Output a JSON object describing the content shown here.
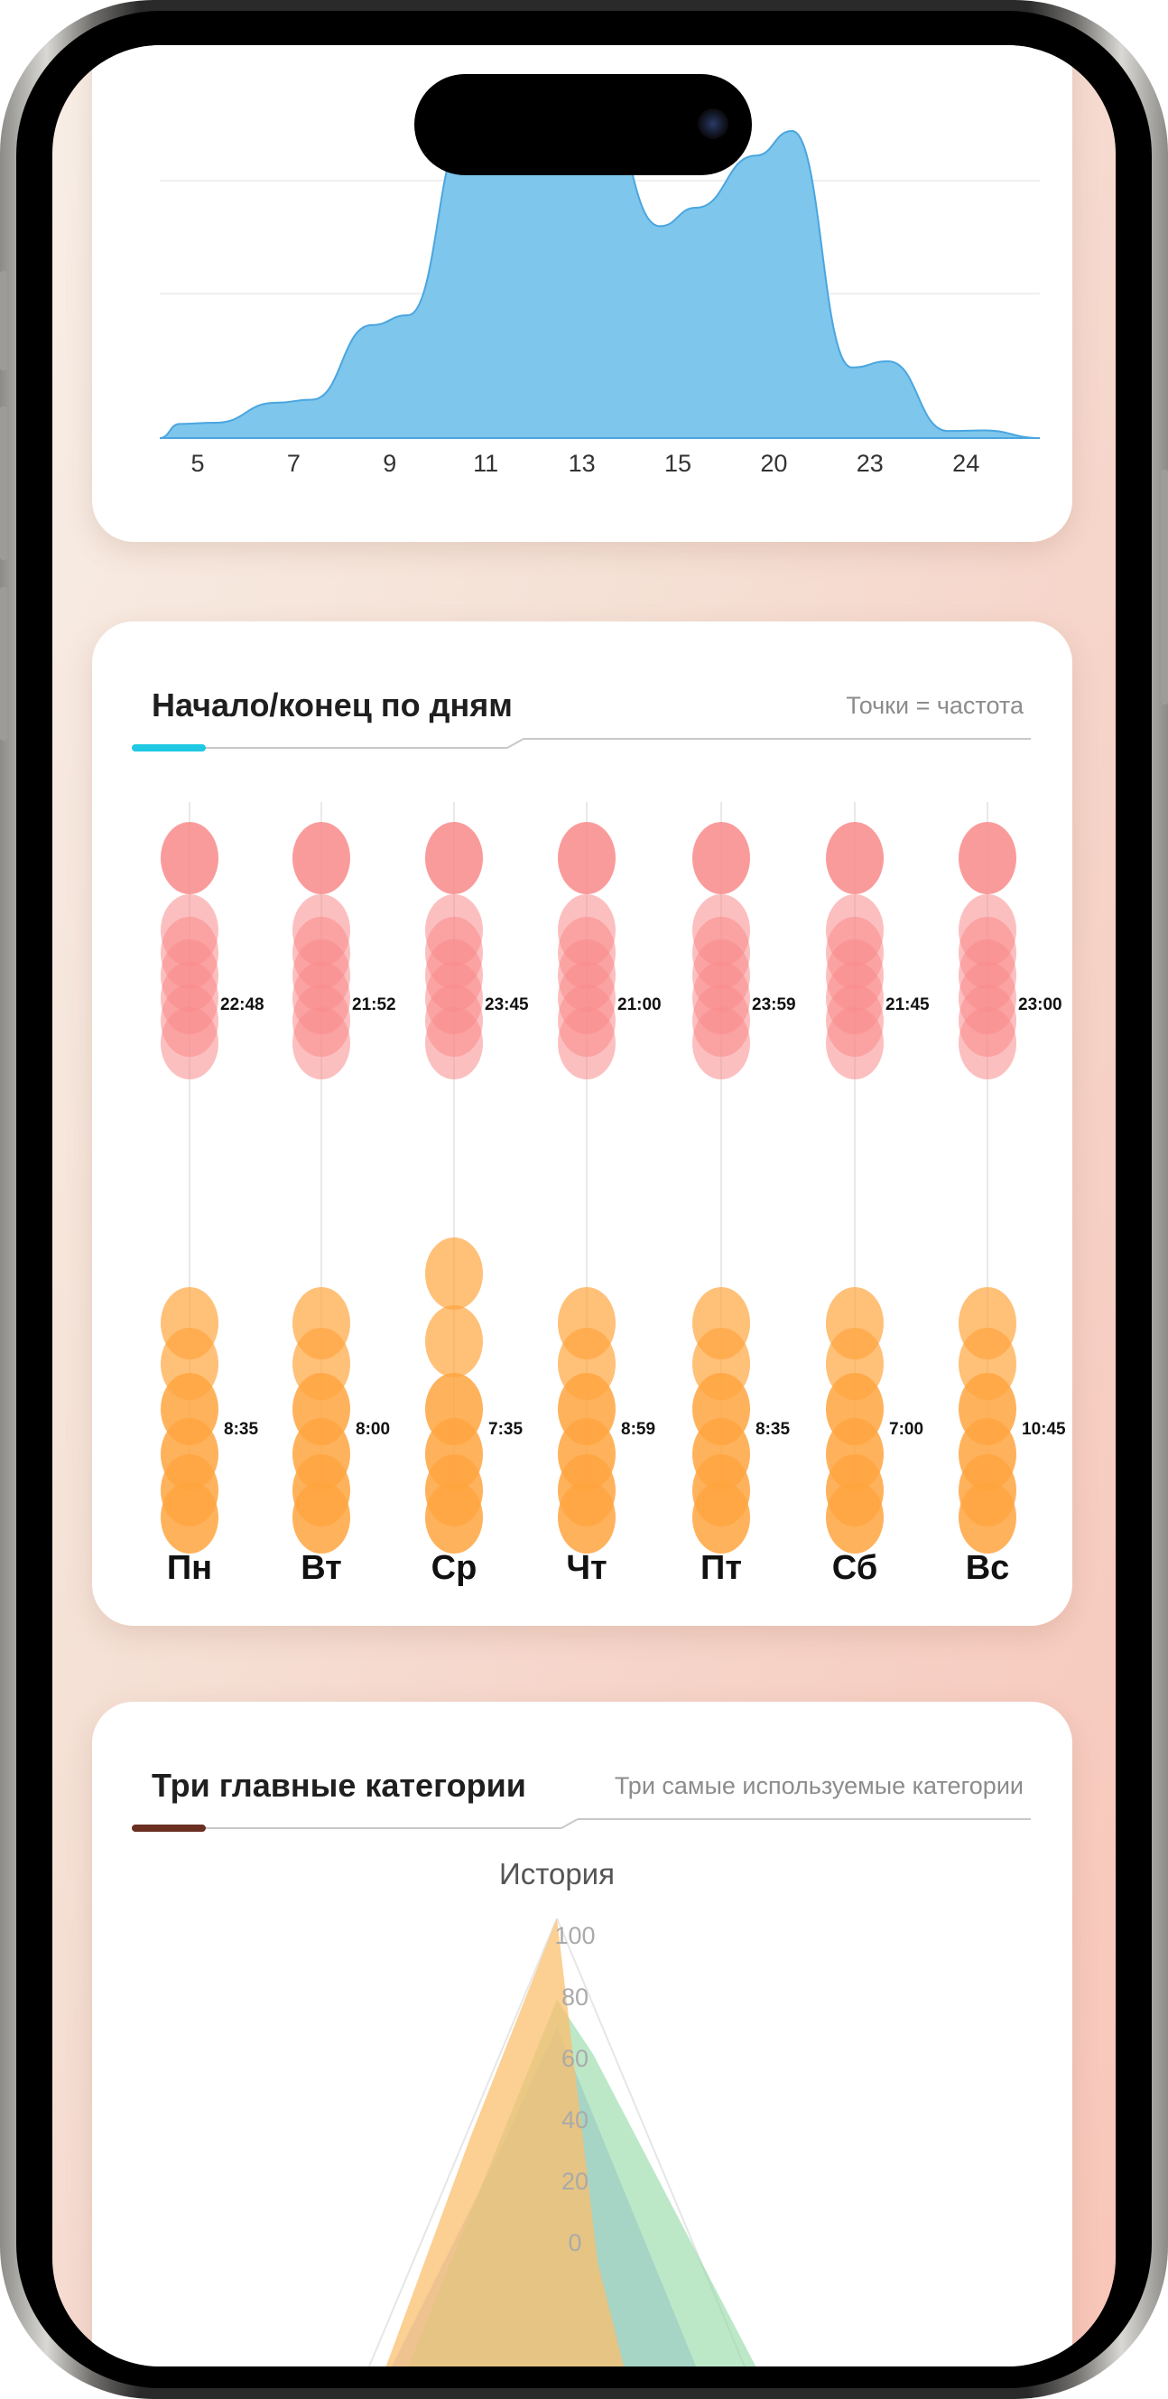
{
  "area_chart": {
    "chart_data": {
      "type": "area",
      "categories": [
        "5",
        "7",
        "9",
        "11",
        "13",
        "15",
        "20",
        "23",
        "24"
      ],
      "values": [
        2,
        5,
        16,
        44,
        44,
        30,
        40,
        10,
        1
      ],
      "color": "#7ec6ec"
    }
  },
  "days_card": {
    "title": "Начало/конец по дням",
    "subtitle": "Точки = частота",
    "accent": "#1fc8e3",
    "chart_data": {
      "type": "scatter",
      "days": [
        {
          "label": "Пн",
          "end_time": "22:48",
          "start_time": "8:35"
        },
        {
          "label": "Вт",
          "end_time": "21:52",
          "start_time": "8:00"
        },
        {
          "label": "Ср",
          "end_time": "23:45",
          "start_time": "7:35"
        },
        {
          "label": "Чт",
          "end_time": "21:00",
          "start_time": "8:59"
        },
        {
          "label": "Пт",
          "end_time": "23:59",
          "start_time": "8:35"
        },
        {
          "label": "Сб",
          "end_time": "21:45",
          "start_time": "7:00"
        },
        {
          "label": "Вс",
          "end_time": "23:00",
          "start_time": "10:45"
        }
      ],
      "colors": {
        "end": "#f98a8a",
        "start": "#ffa53f"
      }
    }
  },
  "categories_card": {
    "title": "Три главные категории",
    "subtitle": "Три самые используемые категории",
    "accent": "#6b2f22",
    "chart_data": {
      "type": "radar",
      "axis_label": "История",
      "ticks": [
        "100",
        "80",
        "60",
        "40",
        "20",
        "0"
      ],
      "colors": [
        "#fbbf6e",
        "#8fd8a3",
        "#9aa6f0"
      ]
    }
  }
}
